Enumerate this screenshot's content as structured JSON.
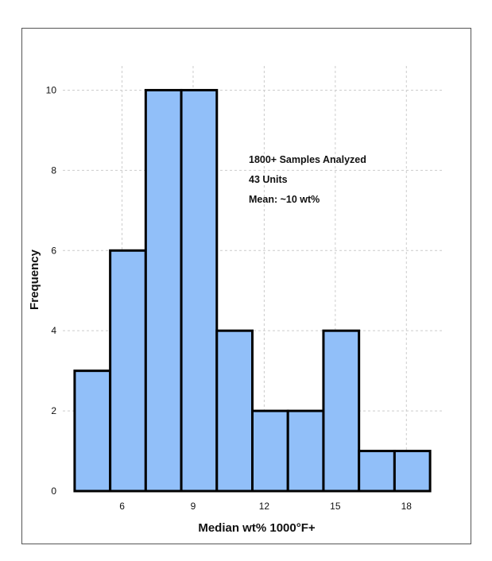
{
  "chart_data": {
    "type": "bar",
    "subtype": "histogram",
    "title": "",
    "xlabel": "Median wt% 1000°F+",
    "ylabel": "Frequency",
    "bin_width": 1.5,
    "bins": [
      {
        "start": 4.0,
        "end": 5.5,
        "value": 3
      },
      {
        "start": 5.5,
        "end": 7.0,
        "value": 6
      },
      {
        "start": 7.0,
        "end": 8.5,
        "value": 10
      },
      {
        "start": 8.5,
        "end": 10.0,
        "value": 10
      },
      {
        "start": 10.0,
        "end": 11.5,
        "value": 4
      },
      {
        "start": 11.5,
        "end": 13.0,
        "value": 2
      },
      {
        "start": 13.0,
        "end": 14.5,
        "value": 2
      },
      {
        "start": 14.5,
        "end": 16.0,
        "value": 4
      },
      {
        "start": 16.0,
        "end": 17.5,
        "value": 1
      },
      {
        "start": 17.5,
        "end": 19.0,
        "value": 1
      }
    ],
    "xlim": [
      3.5,
      19.5
    ],
    "ylim": [
      0,
      11
    ],
    "x_ticks": [
      6,
      9,
      12,
      15,
      18
    ],
    "y_ticks": [
      0,
      2,
      4,
      6,
      8,
      10
    ],
    "grid": true,
    "annotations": [
      "1800+ Samples Analyzed",
      "43 Units",
      "Mean: ~10 wt%"
    ],
    "colors": {
      "bar_fill": "#91bff9",
      "bar_edge": "#000000",
      "grid": "#cccccc"
    }
  }
}
